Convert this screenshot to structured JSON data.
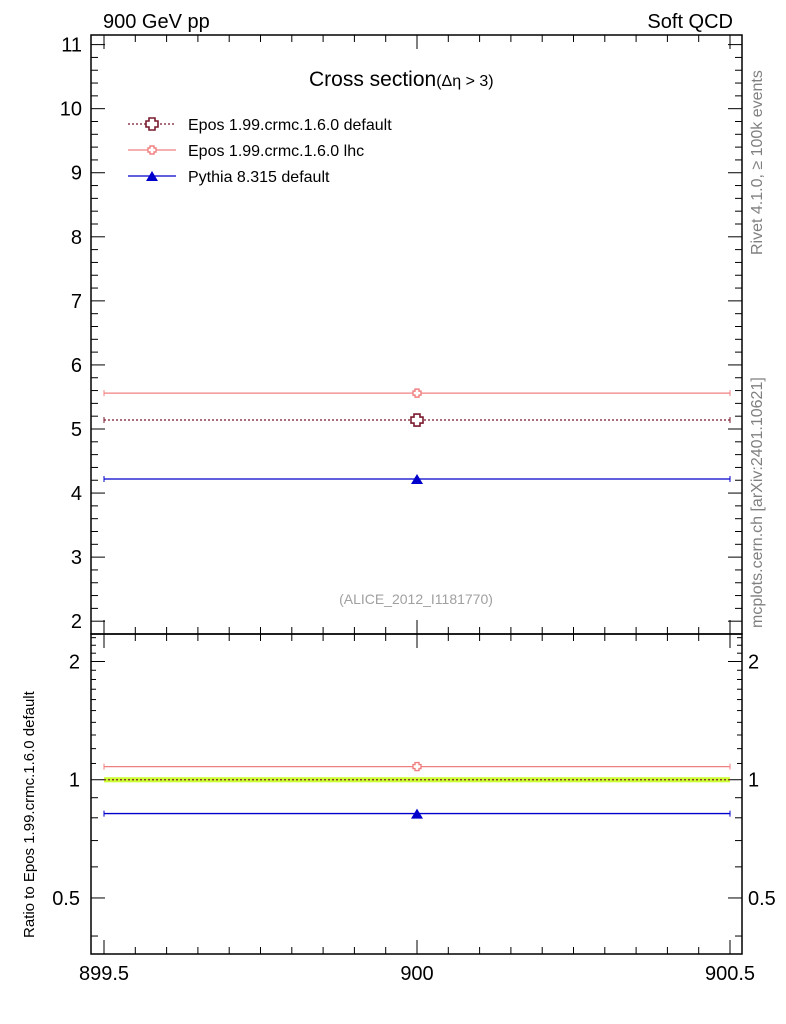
{
  "header": {
    "left": "900 GeV pp",
    "right": "Soft QCD"
  },
  "side_text": {
    "top": "Rivet 4.1.0, ≥ 100k events",
    "bottom": "mcplots.cern.ch [arXiv:2401.10621]"
  },
  "chart_data": {
    "type": "line",
    "title": "Cross section",
    "title_sub": "(Δη > 3)",
    "watermark": "(ALICE_2012_I1181770)",
    "xlabel": "",
    "xlim": [
      899.5,
      900.5
    ],
    "x_ticks": [
      "899.5",
      "900",
      "900.5"
    ],
    "main": {
      "ylim": [
        1.8,
        11.15
      ],
      "y_ticks": [
        "2",
        "3",
        "4",
        "5",
        "6",
        "7",
        "8",
        "9",
        "10",
        "11"
      ],
      "series": [
        {
          "name": "Epos 1.99.crmc.1.6.0 default",
          "color": "#7a1a2e",
          "style": "dotted",
          "marker": "open-cross",
          "x": 900,
          "xerr": [
            899.5,
            900.5
          ],
          "y": 5.14
        },
        {
          "name": "Epos 1.99.crmc.1.6.0 lhc",
          "color": "#f08080",
          "style": "solid",
          "marker": "cross",
          "x": 900,
          "xerr": [
            899.5,
            900.5
          ],
          "y": 5.56
        },
        {
          "name": "Pythia 8.315 default",
          "color": "#0000cc",
          "style": "solid",
          "marker": "triangle",
          "x": 900,
          "xerr": [
            899.5,
            900.5
          ],
          "y": 4.22
        }
      ]
    },
    "ratio": {
      "ylabel": "Ratio to Epos 1.99.crmc.1.6.0 default",
      "ylim": [
        0.36,
        2.35
      ],
      "y_ticks": [
        "0.5",
        "1",
        "2"
      ],
      "band": {
        "low": 0.985,
        "high": 1.015,
        "color": "#ccff33"
      },
      "series": [
        {
          "name": "Epos 1.99.crmc.1.6.0 lhc",
          "color": "#f08080",
          "y": 1.08
        },
        {
          "name": "Pythia 8.315 default",
          "color": "#0000cc",
          "y": 0.82
        }
      ]
    }
  }
}
